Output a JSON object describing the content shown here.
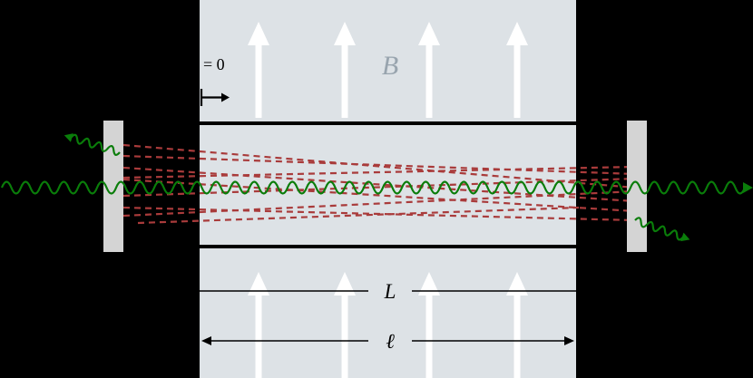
{
  "labels": {
    "field": "B",
    "origin_value": "= 0",
    "mirror_separation": "L",
    "magnet_length": "ℓ"
  },
  "colors": {
    "background": "#000000",
    "magnet_region": "#dde2e6",
    "field_arrow": "#ffffff",
    "tube_wall": "#000000",
    "mirror": "#d4d4d4",
    "photon": "#0a7d0a",
    "axion_ray": "#a93b3b",
    "field_label": "#98a4ae",
    "dimension_line": "#000000"
  }
}
